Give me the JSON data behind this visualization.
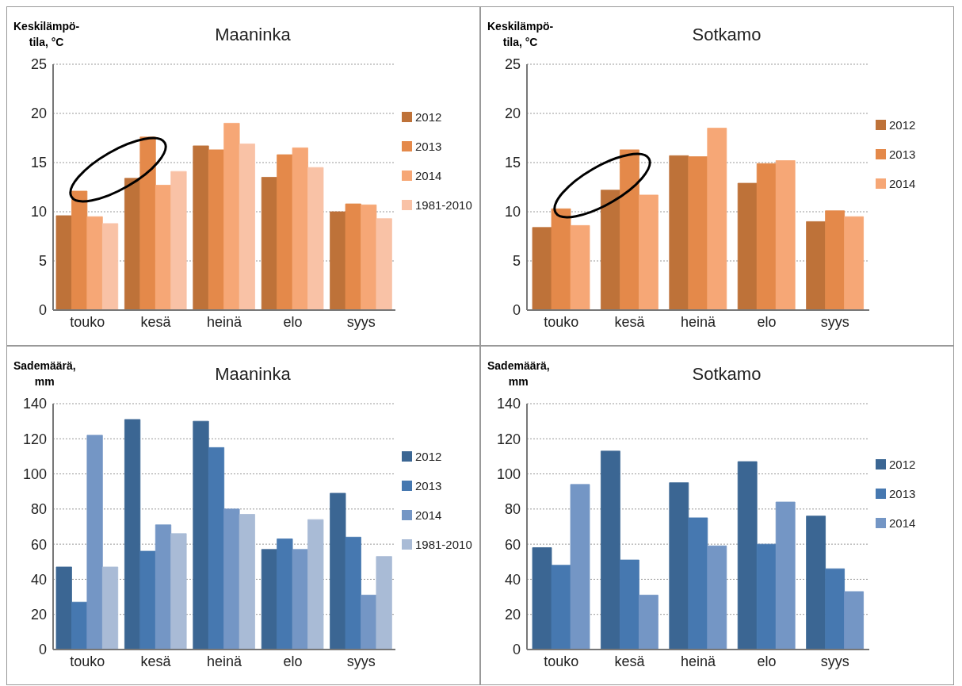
{
  "chart_data": [
    {
      "type": "bar",
      "title": "Maaninka",
      "ylabel": "Keskilämpö-\ntila, °C",
      "categories": [
        "touko",
        "kesä",
        "heinä",
        "elo",
        "syys"
      ],
      "ylim": [
        0,
        25
      ],
      "yticks": [
        0,
        5,
        10,
        15,
        20,
        25
      ],
      "grid": "y",
      "legend": "right",
      "series": [
        {
          "name": "2012",
          "color": "#be7239",
          "values": [
            9.6,
            13.4,
            16.7,
            13.5,
            10.0
          ]
        },
        {
          "name": "2013",
          "color": "#e4894a",
          "values": [
            12.1,
            17.6,
            16.3,
            15.8,
            10.8
          ]
        },
        {
          "name": "2014",
          "color": "#f6a776",
          "values": [
            9.5,
            12.7,
            19.0,
            16.5,
            10.7
          ]
        },
        {
          "name": "1981-2010",
          "color": "#f9c2a6",
          "values": [
            8.8,
            14.1,
            16.9,
            14.5,
            9.3
          ]
        }
      ]
    },
    {
      "type": "bar",
      "title": "Sotkamo",
      "ylabel": "Keskilämpö-\ntila, °C",
      "categories": [
        "touko",
        "kesä",
        "heinä",
        "elo",
        "syys"
      ],
      "ylim": [
        0,
        25
      ],
      "yticks": [
        0,
        5,
        10,
        15,
        20,
        25
      ],
      "grid": "y",
      "legend": "right",
      "series": [
        {
          "name": "2012",
          "color": "#be7239",
          "values": [
            8.4,
            12.2,
            15.7,
            12.9,
            9.0
          ]
        },
        {
          "name": "2013",
          "color": "#e4894a",
          "values": [
            10.3,
            16.3,
            15.6,
            14.9,
            10.1
          ]
        },
        {
          "name": "2014",
          "color": "#f6a776",
          "values": [
            8.6,
            11.7,
            18.5,
            15.2,
            9.5
          ]
        }
      ]
    },
    {
      "type": "bar",
      "title": "Maaninka",
      "ylabel": "Sademäärä,\nmm",
      "categories": [
        "touko",
        "kesä",
        "heinä",
        "elo",
        "syys"
      ],
      "ylim": [
        0,
        140
      ],
      "yticks": [
        0,
        20,
        40,
        60,
        80,
        100,
        120,
        140
      ],
      "grid": "y",
      "legend": "right",
      "series": [
        {
          "name": "2012",
          "color": "#3b6693",
          "values": [
            47,
            131,
            130,
            57,
            89
          ]
        },
        {
          "name": "2013",
          "color": "#4678b0",
          "values": [
            27,
            56,
            115,
            63,
            64
          ]
        },
        {
          "name": "2014",
          "color": "#7496c5",
          "values": [
            122,
            71,
            80,
            57,
            31
          ]
        },
        {
          "name": "1981-2010",
          "color": "#a9bbd6",
          "values": [
            47,
            66,
            77,
            74,
            53
          ]
        }
      ]
    },
    {
      "type": "bar",
      "title": "Sotkamo",
      "ylabel": "Sademäärä,\nmm",
      "categories": [
        "touko",
        "kesä",
        "heinä",
        "elo",
        "syys"
      ],
      "ylim": [
        0,
        140
      ],
      "yticks": [
        0,
        20,
        40,
        60,
        80,
        100,
        120,
        140
      ],
      "grid": "y",
      "legend": "right",
      "series": [
        {
          "name": "2012",
          "color": "#3b6693",
          "values": [
            58,
            113,
            95,
            107,
            76
          ]
        },
        {
          "name": "2013",
          "color": "#4678b0",
          "values": [
            48,
            51,
            75,
            60,
            46
          ]
        },
        {
          "name": "2014",
          "color": "#7496c5",
          "values": [
            94,
            31,
            59,
            84,
            33
          ]
        }
      ]
    }
  ]
}
